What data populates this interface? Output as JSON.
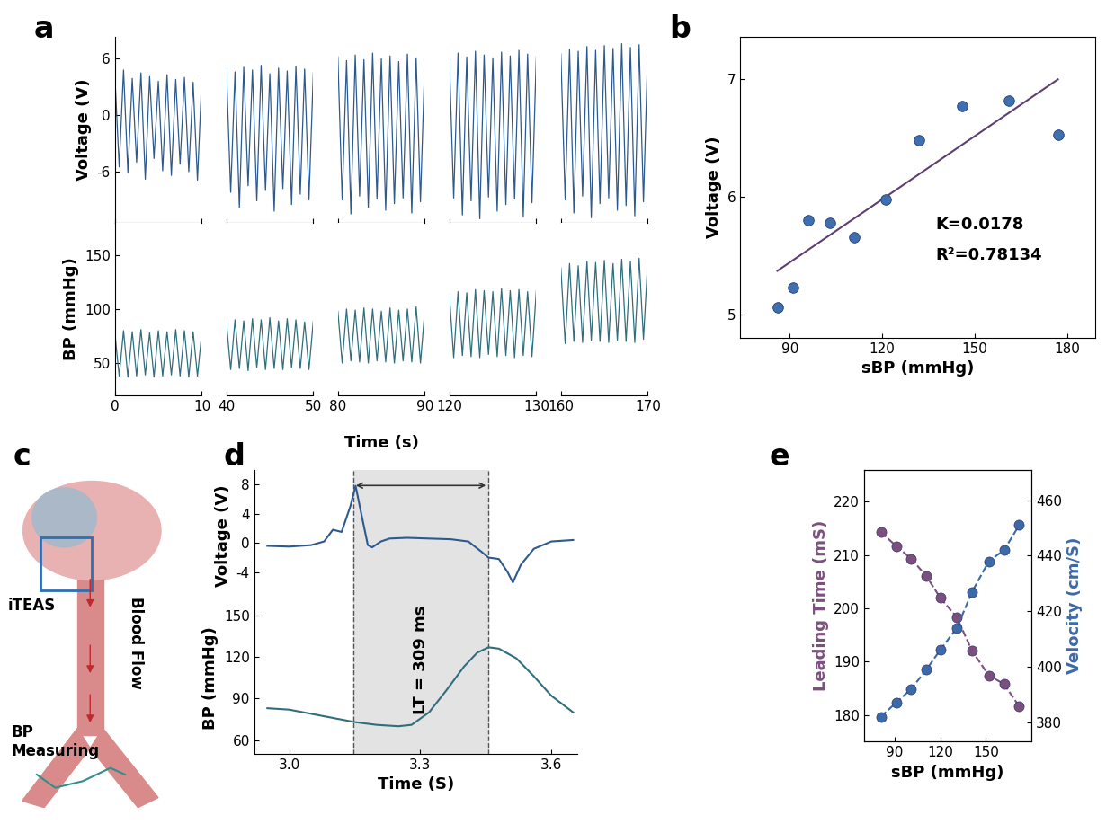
{
  "chart_data": [
    {
      "type": "line",
      "title": "a",
      "xlabel": "Time (s)",
      "segments": [
        {
          "xlim": [
            0,
            10
          ],
          "xticks": [
            0,
            10
          ],
          "x": [
            0,
            0.5,
            1,
            1.5,
            2,
            2.5,
            3,
            3.5,
            4,
            4.5,
            5,
            5.5,
            6,
            6.5,
            7,
            7.5,
            8,
            8.5,
            9,
            9.5,
            10
          ]
        },
        {
          "xlim": [
            40,
            50
          ],
          "xticks": [
            40,
            50
          ],
          "x": [
            40,
            40.5,
            41,
            41.5,
            42,
            42.5,
            43,
            43.5,
            44,
            44.5,
            45,
            45.5,
            46,
            46.5,
            47,
            47.5,
            48,
            48.5,
            49,
            49.5,
            50
          ]
        },
        {
          "xlim": [
            80,
            90
          ],
          "xticks": [
            80,
            90
          ],
          "x": [
            80,
            80.5,
            81,
            81.5,
            82,
            82.5,
            83,
            83.5,
            84,
            84.5,
            85,
            85.5,
            86,
            86.5,
            87,
            87.5,
            88,
            88.5,
            89,
            89.5,
            90
          ]
        },
        {
          "xlim": [
            120,
            130
          ],
          "xticks": [
            120,
            130
          ],
          "x": [
            120,
            120.5,
            121,
            121.5,
            122,
            122.5,
            123,
            123.5,
            124,
            124.5,
            125,
            125.5,
            126,
            126.5,
            127,
            127.5,
            128,
            128.5,
            129,
            129.5,
            130
          ]
        },
        {
          "xlim": [
            160,
            170
          ],
          "xticks": [
            160,
            170
          ],
          "x": [
            160,
            160.5,
            161,
            161.5,
            162,
            162.5,
            163,
            163.5,
            164,
            164.5,
            165,
            165.5,
            166,
            166.5,
            167,
            167.5,
            168,
            168.5,
            169,
            169.5,
            170
          ]
        }
      ],
      "rows": [
        {
          "ylabel": "Voltage (V)",
          "ylim": [
            -11.4,
            8.3
          ],
          "yticks": [
            -6,
            0,
            6
          ],
          "color": "#2d5a8e",
          "values": [
            [
              4.2,
              -5.5,
              4.8,
              -6.1,
              3.9,
              -5.0,
              4.5,
              -6.8,
              4.1,
              -4.6,
              3.6,
              -5.9,
              4.3,
              -6.4,
              3.8,
              -5.2,
              4.0,
              -6.0,
              3.5,
              -6.9,
              3.9
            ],
            [
              5.0,
              -8.2,
              4.6,
              -9.8,
              5.1,
              -7.5,
              4.8,
              -9.1,
              5.3,
              -8.0,
              4.4,
              -10.2,
              5.0,
              -7.8,
              4.7,
              -9.5,
              5.2,
              -8.4,
              4.9,
              -9.0,
              4.5
            ],
            [
              6.2,
              -9.0,
              5.8,
              -10.5,
              6.4,
              -8.6,
              5.9,
              -9.8,
              6.6,
              -8.9,
              6.0,
              -10.1,
              6.3,
              -9.4,
              5.7,
              -8.8,
              6.5,
              -10.4,
              6.1,
              -9.2,
              5.9
            ],
            [
              6.0,
              -8.8,
              6.6,
              -10.6,
              6.2,
              -9.1,
              6.8,
              -11.0,
              6.4,
              -8.7,
              6.1,
              -10.2,
              6.7,
              -9.5,
              6.3,
              -8.9,
              6.9,
              -10.8,
              6.5,
              -9.3,
              6.2
            ],
            [
              6.5,
              -9.0,
              7.0,
              -10.4,
              6.8,
              -8.6,
              7.3,
              -10.9,
              6.9,
              -9.4,
              7.4,
              -8.8,
              7.1,
              -10.1,
              7.6,
              -9.6,
              7.2,
              -10.7,
              7.5,
              -9.2,
              7.0
            ]
          ]
        },
        {
          "ylabel": "BP (mmHg)",
          "ylim": [
            20,
            180
          ],
          "yticks": [
            50,
            100,
            150
          ],
          "color": "#2f6e7c",
          "values": [
            [
              78,
              38,
              80,
              37,
              79,
              38,
              81,
              39,
              78,
              37,
              80,
              38,
              79,
              39,
              81,
              38,
              80,
              37,
              79,
              38,
              78
            ],
            [
              88,
              44,
              90,
              45,
              89,
              43,
              91,
              46,
              90,
              44,
              92,
              45,
              89,
              44,
              91,
              46,
              90,
              45,
              88,
              44,
              89
            ],
            [
              98,
              50,
              100,
              52,
              99,
              51,
              101,
              50,
              100,
              52,
              98,
              51,
              101,
              50,
              99,
              52,
              100,
              51,
              102,
              50,
              99
            ],
            [
              113,
              55,
              116,
              57,
              115,
              56,
              118,
              55,
              117,
              58,
              116,
              56,
              119,
              57,
              117,
              55,
              118,
              57,
              116,
              56,
              117
            ],
            [
              138,
              68,
              142,
              70,
              140,
              69,
              144,
              71,
              143,
              70,
              145,
              69,
              142,
              71,
              146,
              70,
              144,
              69,
              147,
              72,
              145
            ]
          ]
        }
      ]
    },
    {
      "type": "scatter",
      "title": "b",
      "xlabel": "sBP (mmHg)",
      "ylabel": "Voltage (V)",
      "xlim": [
        74,
        189
      ],
      "xticks": [
        90,
        120,
        150,
        180
      ],
      "ylim": [
        4.8,
        7.36
      ],
      "yticks": [
        5,
        6,
        7
      ],
      "series": [
        {
          "type": "scatter",
          "color": "#3f6fb0",
          "marker": "circle",
          "x": [
            86,
            91,
            96,
            103,
            111,
            121,
            132,
            146,
            161,
            177
          ],
          "values": [
            5.06,
            5.23,
            5.8,
            5.78,
            5.66,
            5.98,
            6.48,
            6.77,
            6.82,
            6.53
          ]
        },
        {
          "type": "line",
          "color": "#5e3f70",
          "line_style": "solid",
          "x": [
            86,
            177
          ],
          "values": [
            5.37,
            7.0
          ]
        }
      ],
      "annotations": [
        "K=0.0178",
        "R²=0.78134"
      ]
    },
    {
      "type": "diagram",
      "title": "c",
      "labels": [
        "iTEAS",
        "Blood Flow",
        "BP\nMeasuring"
      ]
    },
    {
      "type": "line",
      "title": "d",
      "xlabel": "Time (S)",
      "xlim": [
        2.92,
        3.66
      ],
      "xticks": [
        {
          "value": 3,
          "label": "3.0"
        },
        {
          "value": 3.3,
          "label": "3.3"
        },
        {
          "value": 3.6,
          "label": "3.6"
        }
      ],
      "span": [
        3.147,
        3.456
      ],
      "span_label": "LT = 309 ms",
      "rows": [
        {
          "ylabel": "Voltage (V)",
          "ylim": [
            -8,
            10
          ],
          "yticks": [
            -4,
            0,
            4,
            8
          ],
          "color": "#2d5a8e",
          "x": [
            2.95,
            3.0,
            3.05,
            3.08,
            3.1,
            3.12,
            3.14,
            3.152,
            3.165,
            3.18,
            3.19,
            3.21,
            3.23,
            3.27,
            3.32,
            3.37,
            3.41,
            3.44,
            3.456,
            3.48,
            3.5,
            3.512,
            3.53,
            3.56,
            3.6,
            3.65
          ],
          "values": [
            -0.4,
            -0.5,
            -0.3,
            0.2,
            1.8,
            1.5,
            5.0,
            7.8,
            4.0,
            -0.3,
            -0.6,
            0.2,
            0.6,
            0.7,
            0.6,
            0.5,
            0.2,
            -1.2,
            -2.0,
            -2.2,
            -4.0,
            -5.4,
            -3.0,
            -0.8,
            0.2,
            0.4
          ]
        },
        {
          "ylabel": "BP (mmHg)",
          "ylim": [
            50,
            160
          ],
          "yticks": [
            60,
            90,
            120,
            150
          ],
          "color": "#2f6e7c",
          "x": [
            2.95,
            3.0,
            3.05,
            3.1,
            3.15,
            3.2,
            3.25,
            3.28,
            3.32,
            3.36,
            3.4,
            3.43,
            3.456,
            3.48,
            3.52,
            3.56,
            3.6,
            3.65
          ],
          "values": [
            83,
            82,
            79,
            76,
            73,
            71,
            70,
            71,
            80,
            96,
            113,
            123,
            127,
            126,
            119,
            106,
            92,
            80
          ]
        }
      ]
    },
    {
      "type": "line",
      "title": "e",
      "xlabel": "sBP (mmHg)",
      "ylabel": "Leading Time (mS)",
      "y2label": "Velocity (cm/S)",
      "xlim": [
        70,
        180
      ],
      "xticks": [
        90,
        120,
        150
      ],
      "ylim": [
        175,
        226
      ],
      "yticks": [
        180,
        190,
        200,
        210,
        220
      ],
      "y2lim": [
        373,
        471
      ],
      "y2ticks": [
        380,
        400,
        420,
        440,
        460
      ],
      "x": [
        81,
        91,
        101,
        111,
        120,
        131,
        141,
        152,
        162,
        172
      ],
      "series": [
        {
          "color": "#7b4f7e",
          "marker": "circle",
          "line_style": "dashed",
          "values": [
            214.3,
            211.7,
            209.3,
            206.0,
            202.0,
            198.3,
            192.0,
            187.4,
            185.8,
            181.6
          ]
        },
        {
          "color": "#3b6aa8",
          "marker": "circle",
          "line_style": "dashed",
          "axis": "y2",
          "values": [
            382,
            387,
            392,
            399,
            406,
            414,
            427,
            438,
            442,
            451
          ]
        }
      ]
    }
  ]
}
